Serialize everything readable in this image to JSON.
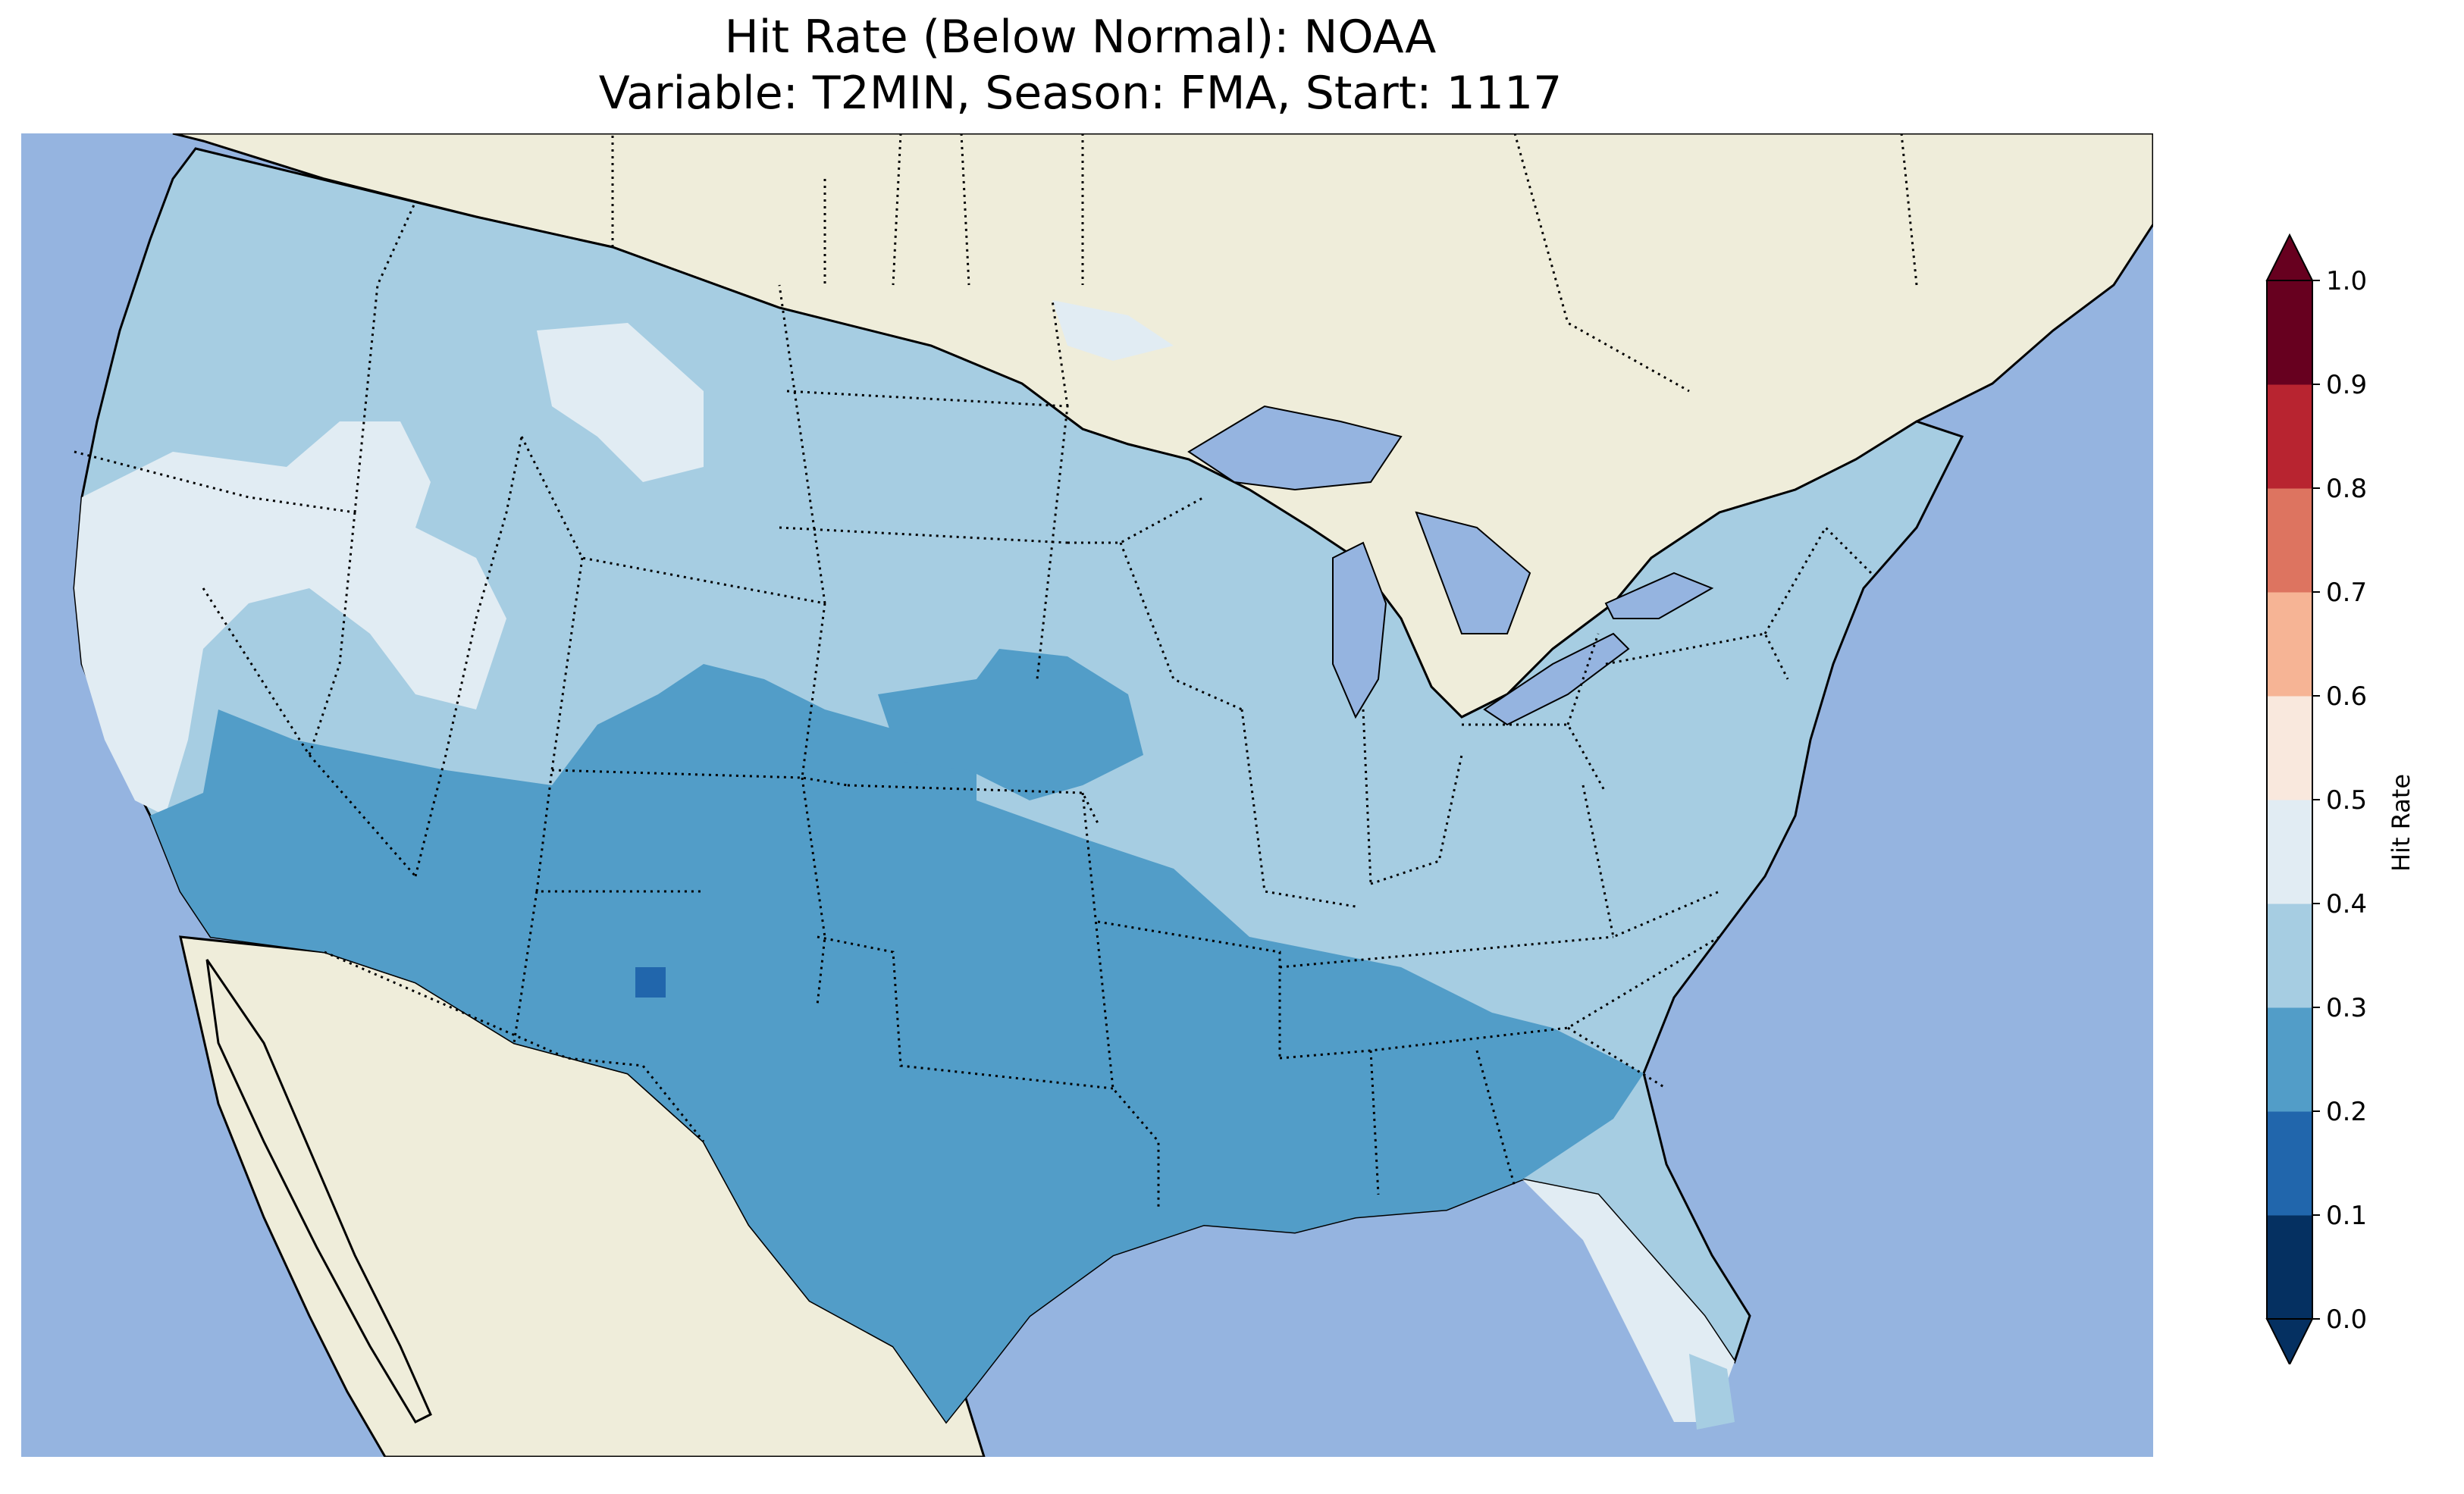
{
  "title_line1": "Hit Rate (Below Normal): NOAA",
  "title_line2": "Variable: T2MIN, Season: FMA, Start: 1117",
  "colors": {
    "ocean": "#95b4e0",
    "land": "#efedda",
    "lake": "#95b4e0"
  },
  "map_legend": {
    "label": "Hit Rate",
    "ticks": [
      "0.0",
      "0.1",
      "0.2",
      "0.3",
      "0.4",
      "0.5",
      "0.6",
      "0.7",
      "0.8",
      "0.9",
      "1.0"
    ],
    "bins": [
      {
        "range": [
          0.0,
          0.1
        ],
        "color": "#053061"
      },
      {
        "range": [
          0.1,
          0.2
        ],
        "color": "#2166ac"
      },
      {
        "range": [
          0.2,
          0.3
        ],
        "color": "#529dc8"
      },
      {
        "range": [
          0.3,
          0.4
        ],
        "color": "#a6cde2"
      },
      {
        "range": [
          0.4,
          0.5
        ],
        "color": "#e1ecf3"
      },
      {
        "range": [
          0.5,
          0.6
        ],
        "color": "#f9e8dd"
      },
      {
        "range": [
          0.6,
          0.7
        ],
        "color": "#f6b495"
      },
      {
        "range": [
          0.7,
          0.8
        ],
        "color": "#dd7460"
      },
      {
        "range": [
          0.8,
          0.9
        ],
        "color": "#b82430"
      },
      {
        "range": [
          0.9,
          1.0
        ],
        "color": "#67001f"
      }
    ],
    "extend": "both"
  },
  "regions": [
    {
      "name": "West Coast",
      "bin": "0.4-0.5"
    },
    {
      "name": "Northern Tier",
      "bin": "0.3-0.4"
    },
    {
      "name": "Southwest",
      "bin": "0.2-0.3"
    },
    {
      "name": "Southern Plains",
      "bin": "0.2-0.3"
    },
    {
      "name": "Gulf Coast",
      "bin": "0.2-0.3"
    },
    {
      "name": "Central Nebraska",
      "bin": "0.2-0.3"
    },
    {
      "name": "Florida Peninsula",
      "bin": "0.4-0.5"
    },
    {
      "name": "Northeast",
      "bin": "0.3-0.4"
    },
    {
      "name": "New Mexico spot",
      "bin": "0.1-0.2"
    }
  ]
}
